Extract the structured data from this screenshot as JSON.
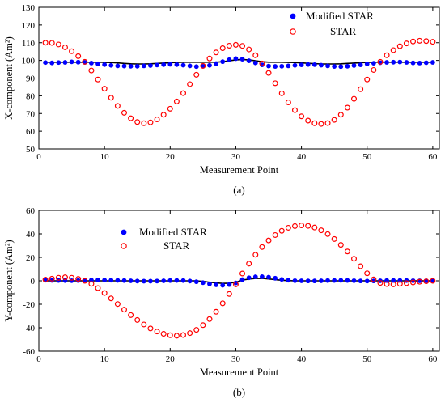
{
  "chart_data": [
    {
      "type": "scatter",
      "panel_label": "(a)",
      "xlabel": "Measurement Point",
      "ylabel": "X-component (Am²)",
      "xlim": [
        0,
        61
      ],
      "ylim": [
        50,
        130
      ],
      "x_ticks": [
        0,
        10,
        20,
        30,
        40,
        50,
        60
      ],
      "y_ticks": [
        50,
        60,
        70,
        80,
        90,
        100,
        110,
        120,
        130
      ],
      "legend_position": "top-right",
      "reference_line": {
        "y_values": [
          99,
          99,
          99,
          99,
          99,
          99,
          99,
          99,
          99,
          98.9,
          98.8,
          98.6,
          98.3,
          98.1,
          98,
          98,
          98.1,
          98.3,
          98.5,
          98.7,
          98.9,
          99,
          99,
          99,
          99,
          99,
          99,
          99.3,
          99.8,
          100.3,
          100.5,
          100.3,
          99.8,
          99.3,
          99,
          99,
          99,
          98.9,
          98.8,
          98.6,
          98.4,
          98.2,
          98,
          98,
          98,
          98.1,
          98.3,
          98.5,
          98.7,
          98.9,
          99,
          99,
          99,
          99,
          99,
          99,
          99,
          99,
          99,
          99
        ],
        "color": "#000000"
      },
      "series": [
        {
          "name": "Modified STAR",
          "marker": "filled-circle",
          "color": "#0000ff",
          "x": [
            1,
            2,
            3,
            4,
            5,
            6,
            7,
            8,
            9,
            10,
            11,
            12,
            13,
            14,
            15,
            16,
            17,
            18,
            19,
            20,
            21,
            22,
            23,
            24,
            25,
            26,
            27,
            28,
            29,
            30,
            31,
            32,
            33,
            34,
            35,
            36,
            37,
            38,
            39,
            40,
            41,
            42,
            43,
            44,
            45,
            46,
            47,
            48,
            49,
            50,
            51,
            52,
            53,
            54,
            55,
            56,
            57,
            58,
            59,
            60
          ],
          "y": [
            98.8,
            98.6,
            98.8,
            98.9,
            99.2,
            99,
            98.9,
            98.5,
            98.1,
            97.6,
            97.2,
            96.9,
            96.8,
            96.7,
            96.7,
            96.9,
            97.1,
            97.4,
            97.6,
            97.8,
            97.6,
            97.3,
            96.9,
            96.5,
            96.7,
            97.2,
            98.2,
            99.3,
            100.4,
            101,
            100.7,
            99.8,
            98.6,
            97.5,
            96.8,
            96.6,
            96.7,
            96.9,
            97.2,
            97.5,
            97.7,
            97.6,
            97.3,
            96.9,
            96.6,
            96.5,
            96.7,
            97.1,
            97.5,
            98,
            98.4,
            98.7,
            98.9,
            99,
            99.1,
            98.9,
            98.6,
            98.5,
            98.7,
            98.9
          ]
        },
        {
          "name": "STAR",
          "marker": "open-circle",
          "color": "#ff0000",
          "x": [
            1,
            2,
            3,
            4,
            5,
            6,
            7,
            8,
            9,
            10,
            11,
            12,
            13,
            14,
            15,
            16,
            17,
            18,
            19,
            20,
            21,
            22,
            23,
            24,
            25,
            26,
            27,
            28,
            29,
            30,
            31,
            32,
            33,
            34,
            35,
            36,
            37,
            38,
            39,
            40,
            41,
            42,
            43,
            44,
            45,
            46,
            47,
            48,
            49,
            50,
            51,
            52,
            53,
            54,
            55,
            56,
            57,
            58,
            59,
            60
          ],
          "y": [
            110,
            109.9,
            109,
            107.4,
            105.2,
            102.4,
            99.2,
            94.3,
            89.2,
            84,
            78.9,
            74.3,
            70.4,
            67.3,
            65.2,
            64.5,
            65,
            66.7,
            69.3,
            72.7,
            76.8,
            81.5,
            86.6,
            91.9,
            96.9,
            101.1,
            104.5,
            106.9,
            108.3,
            108.8,
            108.2,
            106.2,
            102.9,
            98.3,
            92.9,
            87.1,
            81.4,
            76.3,
            71.9,
            68.4,
            66,
            64.5,
            64.1,
            64.6,
            66.4,
            69.3,
            73.3,
            78.3,
            83.7,
            89.2,
            94.6,
            99.2,
            102.9,
            105.8,
            108,
            109.6,
            110.7,
            111.1,
            110.9,
            110.5
          ]
        }
      ]
    },
    {
      "type": "scatter",
      "panel_label": "(b)",
      "xlabel": "Measurement Point",
      "ylabel": "Y-component (Am²)",
      "xlim": [
        0,
        61
      ],
      "ylim": [
        -60,
        60
      ],
      "x_ticks": [
        0,
        10,
        20,
        30,
        40,
        50,
        60
      ],
      "y_ticks": [
        -60,
        -40,
        -20,
        0,
        20,
        40,
        60
      ],
      "legend_position": "top-left",
      "reference_line": {
        "y_values": [
          0,
          0,
          0,
          0,
          0,
          0,
          0,
          0,
          0,
          0,
          0,
          0,
          0,
          0,
          0,
          0,
          0,
          0,
          0,
          0,
          0,
          0,
          0,
          0,
          -0.5,
          -1.2,
          -1.8,
          -2.2,
          -2,
          -1.2,
          0.6,
          1.5,
          2,
          2.1,
          1.6,
          1,
          0.5,
          0.2,
          0,
          0,
          0,
          0,
          0,
          0,
          0,
          0,
          0,
          0,
          0,
          0,
          0,
          0,
          0,
          0,
          0,
          0,
          0,
          0,
          0,
          0
        ],
        "color": "#000000"
      },
      "series": [
        {
          "name": "Modified STAR",
          "marker": "filled-circle",
          "color": "#0000ff",
          "x": [
            1,
            2,
            3,
            4,
            5,
            6,
            7,
            8,
            9,
            10,
            11,
            12,
            13,
            14,
            15,
            16,
            17,
            18,
            19,
            20,
            21,
            22,
            23,
            24,
            25,
            26,
            27,
            28,
            29,
            30,
            31,
            32,
            33,
            34,
            35,
            36,
            37,
            38,
            39,
            40,
            41,
            42,
            43,
            44,
            45,
            46,
            47,
            48,
            49,
            50,
            51,
            52,
            53,
            54,
            55,
            56,
            57,
            58,
            59,
            60
          ],
          "y": [
            0.5,
            0.4,
            0.3,
            0.2,
            0.1,
            0.2,
            0.4,
            0.6,
            0.7,
            0.6,
            0.5,
            0.4,
            0.2,
            0,
            -0.2,
            -0.3,
            -0.3,
            -0.2,
            0,
            0.2,
            0.3,
            0.2,
            -0.2,
            -0.8,
            -1.6,
            -2.6,
            -3.4,
            -3.8,
            -3.2,
            -1.8,
            1,
            2.6,
            3.4,
            3.5,
            3.1,
            2.2,
            1.2,
            0.5,
            0.1,
            0,
            -0.1,
            -0.1,
            0,
            0.2,
            0.3,
            0.4,
            0.3,
            0.1,
            -0.1,
            -0.2,
            -0.1,
            0,
            0.2,
            0.3,
            0.3,
            0.2,
            0.1,
            0,
            0,
            0
          ]
        },
        {
          "name": "STAR",
          "marker": "open-circle",
          "color": "#ff0000",
          "x": [
            1,
            2,
            3,
            4,
            5,
            6,
            7,
            8,
            9,
            10,
            11,
            12,
            13,
            14,
            15,
            16,
            17,
            18,
            19,
            20,
            21,
            22,
            23,
            24,
            25,
            26,
            27,
            28,
            29,
            30,
            31,
            32,
            33,
            34,
            35,
            36,
            37,
            38,
            39,
            40,
            41,
            42,
            43,
            44,
            45,
            46,
            47,
            48,
            49,
            50,
            51,
            52,
            53,
            54,
            55,
            56,
            57,
            58,
            59,
            60
          ],
          "y": [
            1,
            1.8,
            2.6,
            3,
            2.6,
            1.6,
            0,
            -2.6,
            -6.2,
            -10.4,
            -15,
            -19.8,
            -24.6,
            -29.2,
            -33.4,
            -37.2,
            -40.6,
            -43.2,
            -45.2,
            -46.4,
            -46.8,
            -46.2,
            -44.6,
            -41.8,
            -37.8,
            -32.6,
            -26.4,
            -19.2,
            -11.2,
            -3,
            6.2,
            14.6,
            22.2,
            28.8,
            34.4,
            39,
            42.6,
            45.2,
            46.6,
            47.2,
            46.8,
            45.4,
            43,
            39.8,
            35.6,
            30.6,
            25,
            18.8,
            12.4,
            6.4,
            1.2,
            -1.8,
            -2.8,
            -3,
            -2.6,
            -2,
            -1.4,
            -0.8,
            -0.4,
            0
          ]
        }
      ]
    }
  ]
}
